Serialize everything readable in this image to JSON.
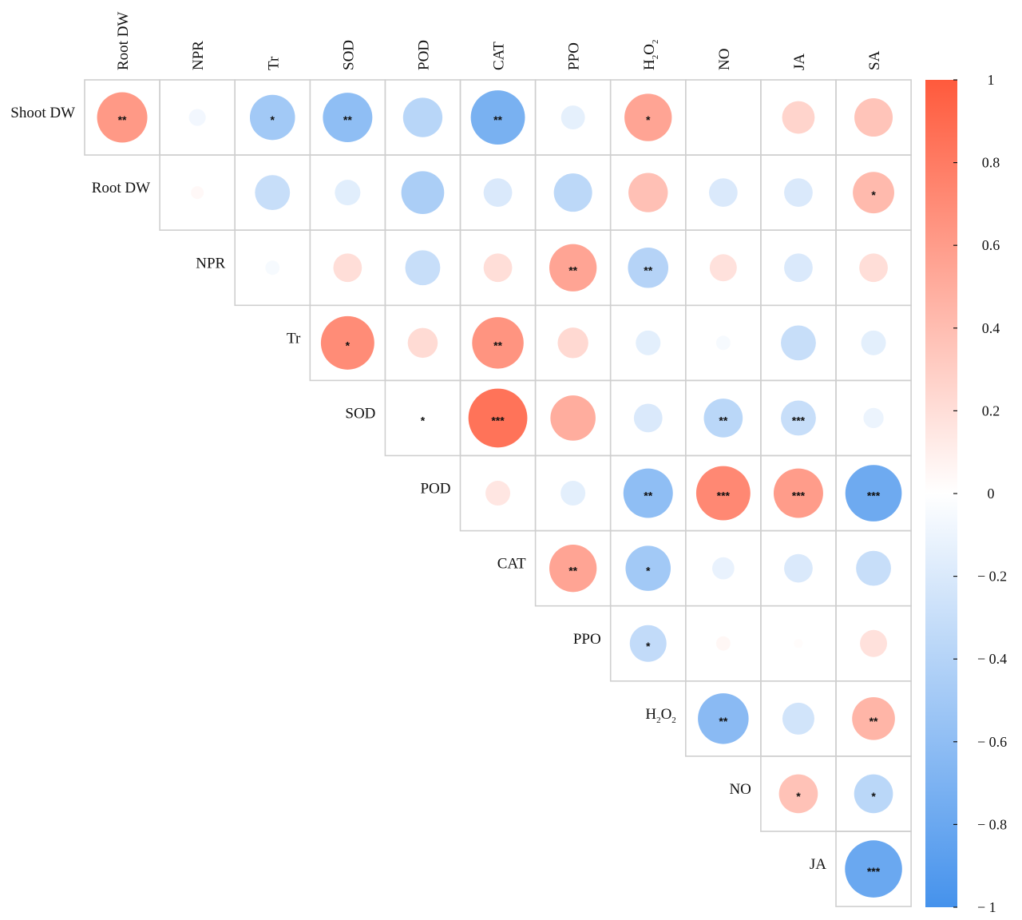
{
  "chart_data": {
    "type": "heatmap",
    "subtype": "correlation-upper-triangle-circles",
    "title": "",
    "xlabel": "",
    "ylabel": "",
    "column_labels": [
      {
        "text": "Root DW"
      },
      {
        "text": "NPR"
      },
      {
        "text": "Tr"
      },
      {
        "text": "SOD"
      },
      {
        "text": "POD"
      },
      {
        "text": "CAT"
      },
      {
        "text": "PPO"
      },
      {
        "text": "H",
        "sub1": "2",
        "mid": "O",
        "sub2": "2"
      },
      {
        "text": "NO"
      },
      {
        "text": "JA"
      },
      {
        "text": "SA"
      }
    ],
    "row_labels": [
      {
        "text": "Shoot DW"
      },
      {
        "text": "Root DW"
      },
      {
        "text": "NPR"
      },
      {
        "text": "Tr"
      },
      {
        "text": "SOD"
      },
      {
        "text": "POD"
      },
      {
        "text": "CAT"
      },
      {
        "text": "PPO"
      },
      {
        "text": "H",
        "sub1": "2",
        "mid": "O",
        "sub2": "2"
      },
      {
        "text": "NO"
      },
      {
        "text": "JA"
      }
    ],
    "cells": [
      {
        "row": 0,
        "col": 0,
        "r": 0.62,
        "sig": "**"
      },
      {
        "row": 0,
        "col": 1,
        "r": -0.07,
        "sig": ""
      },
      {
        "row": 0,
        "col": 2,
        "r": -0.5,
        "sig": "*"
      },
      {
        "row": 0,
        "col": 3,
        "r": -0.6,
        "sig": "**"
      },
      {
        "row": 0,
        "col": 4,
        "r": -0.38,
        "sig": ""
      },
      {
        "row": 0,
        "col": 5,
        "r": -0.72,
        "sig": "**"
      },
      {
        "row": 0,
        "col": 6,
        "r": -0.14,
        "sig": ""
      },
      {
        "row": 0,
        "col": 7,
        "r": 0.55,
        "sig": "*"
      },
      {
        "row": 0,
        "col": 8,
        "r": 0.0,
        "sig": ""
      },
      {
        "row": 0,
        "col": 9,
        "r": 0.26,
        "sig": ""
      },
      {
        "row": 0,
        "col": 10,
        "r": 0.36,
        "sig": ""
      },
      {
        "row": 1,
        "col": 1,
        "r": 0.04,
        "sig": ""
      },
      {
        "row": 1,
        "col": 2,
        "r": -0.3,
        "sig": ""
      },
      {
        "row": 1,
        "col": 3,
        "r": -0.16,
        "sig": ""
      },
      {
        "row": 1,
        "col": 4,
        "r": -0.45,
        "sig": ""
      },
      {
        "row": 1,
        "col": 5,
        "r": -0.2,
        "sig": ""
      },
      {
        "row": 1,
        "col": 6,
        "r": -0.36,
        "sig": ""
      },
      {
        "row": 1,
        "col": 7,
        "r": 0.38,
        "sig": ""
      },
      {
        "row": 1,
        "col": 8,
        "r": -0.2,
        "sig": ""
      },
      {
        "row": 1,
        "col": 9,
        "r": -0.2,
        "sig": ""
      },
      {
        "row": 1,
        "col": 10,
        "r": 0.42,
        "sig": "*"
      },
      {
        "row": 2,
        "col": 2,
        "r": -0.05,
        "sig": ""
      },
      {
        "row": 2,
        "col": 3,
        "r": 0.2,
        "sig": ""
      },
      {
        "row": 2,
        "col": 4,
        "r": -0.3,
        "sig": ""
      },
      {
        "row": 2,
        "col": 5,
        "r": 0.2,
        "sig": ""
      },
      {
        "row": 2,
        "col": 6,
        "r": 0.55,
        "sig": "**"
      },
      {
        "row": 2,
        "col": 7,
        "r": -0.4,
        "sig": "**"
      },
      {
        "row": 2,
        "col": 8,
        "r": 0.18,
        "sig": ""
      },
      {
        "row": 2,
        "col": 9,
        "r": -0.2,
        "sig": ""
      },
      {
        "row": 2,
        "col": 10,
        "r": 0.2,
        "sig": ""
      },
      {
        "row": 3,
        "col": 3,
        "r": 0.7,
        "sig": "*"
      },
      {
        "row": 3,
        "col": 4,
        "r": 0.22,
        "sig": ""
      },
      {
        "row": 3,
        "col": 5,
        "r": 0.65,
        "sig": "**"
      },
      {
        "row": 3,
        "col": 6,
        "r": 0.23,
        "sig": ""
      },
      {
        "row": 3,
        "col": 7,
        "r": -0.15,
        "sig": ""
      },
      {
        "row": 3,
        "col": 8,
        "r": -0.05,
        "sig": ""
      },
      {
        "row": 3,
        "col": 9,
        "r": -0.3,
        "sig": ""
      },
      {
        "row": 3,
        "col": 10,
        "r": -0.15,
        "sig": ""
      },
      {
        "row": 4,
        "col": 4,
        "r": 0.0,
        "sig": "*"
      },
      {
        "row": 4,
        "col": 5,
        "r": 0.85,
        "sig": "***"
      },
      {
        "row": 4,
        "col": 6,
        "r": 0.5,
        "sig": ""
      },
      {
        "row": 4,
        "col": 7,
        "r": -0.2,
        "sig": ""
      },
      {
        "row": 4,
        "col": 8,
        "r": -0.37,
        "sig": "**"
      },
      {
        "row": 4,
        "col": 9,
        "r": -0.3,
        "sig": "***"
      },
      {
        "row": 4,
        "col": 10,
        "r": -0.1,
        "sig": ""
      },
      {
        "row": 5,
        "col": 5,
        "r": 0.15,
        "sig": ""
      },
      {
        "row": 5,
        "col": 6,
        "r": -0.15,
        "sig": ""
      },
      {
        "row": 5,
        "col": 7,
        "r": -0.6,
        "sig": "**"
      },
      {
        "row": 5,
        "col": 8,
        "r": 0.72,
        "sig": "***"
      },
      {
        "row": 5,
        "col": 9,
        "r": 0.6,
        "sig": "***"
      },
      {
        "row": 5,
        "col": 10,
        "r": -0.78,
        "sig": "***"
      },
      {
        "row": 6,
        "col": 6,
        "r": 0.55,
        "sig": "**"
      },
      {
        "row": 6,
        "col": 7,
        "r": -0.5,
        "sig": "*"
      },
      {
        "row": 6,
        "col": 8,
        "r": -0.12,
        "sig": ""
      },
      {
        "row": 6,
        "col": 9,
        "r": -0.2,
        "sig": ""
      },
      {
        "row": 6,
        "col": 10,
        "r": -0.3,
        "sig": ""
      },
      {
        "row": 7,
        "col": 7,
        "r": -0.33,
        "sig": "*"
      },
      {
        "row": 7,
        "col": 8,
        "r": 0.05,
        "sig": ""
      },
      {
        "row": 7,
        "col": 9,
        "r": 0.02,
        "sig": ""
      },
      {
        "row": 7,
        "col": 10,
        "r": 0.18,
        "sig": ""
      },
      {
        "row": 8,
        "col": 8,
        "r": -0.63,
        "sig": "**"
      },
      {
        "row": 8,
        "col": 9,
        "r": -0.25,
        "sig": ""
      },
      {
        "row": 8,
        "col": 10,
        "r": 0.45,
        "sig": "**"
      },
      {
        "row": 9,
        "col": 9,
        "r": 0.37,
        "sig": "*"
      },
      {
        "row": 9,
        "col": 10,
        "r": -0.37,
        "sig": "*"
      },
      {
        "row": 10,
        "col": 10,
        "r": -0.8,
        "sig": "***"
      }
    ],
    "colorbar": {
      "range": [
        -1,
        1
      ],
      "ticks": [
        {
          "value": 1,
          "label": "1"
        },
        {
          "value": 0.8,
          "label": "0.8"
        },
        {
          "value": 0.6,
          "label": "0.6"
        },
        {
          "value": 0.4,
          "label": "0.4"
        },
        {
          "value": 0.2,
          "label": "0.2"
        },
        {
          "value": 0,
          "label": "0"
        },
        {
          "value": -0.2,
          "label": "− 0.2"
        },
        {
          "value": -0.4,
          "label": "− 0.4"
        },
        {
          "value": -0.6,
          "label": "− 0.6"
        },
        {
          "value": -0.8,
          "label": "− 0.8"
        },
        {
          "value": -1,
          "label": "− 1"
        }
      ],
      "colors": {
        "negative": "#4592ec",
        "zero": "#ffffff",
        "positive": "#ff5a3c"
      },
      "placement": "right"
    },
    "grid": true,
    "legend": "colorbar-right"
  }
}
